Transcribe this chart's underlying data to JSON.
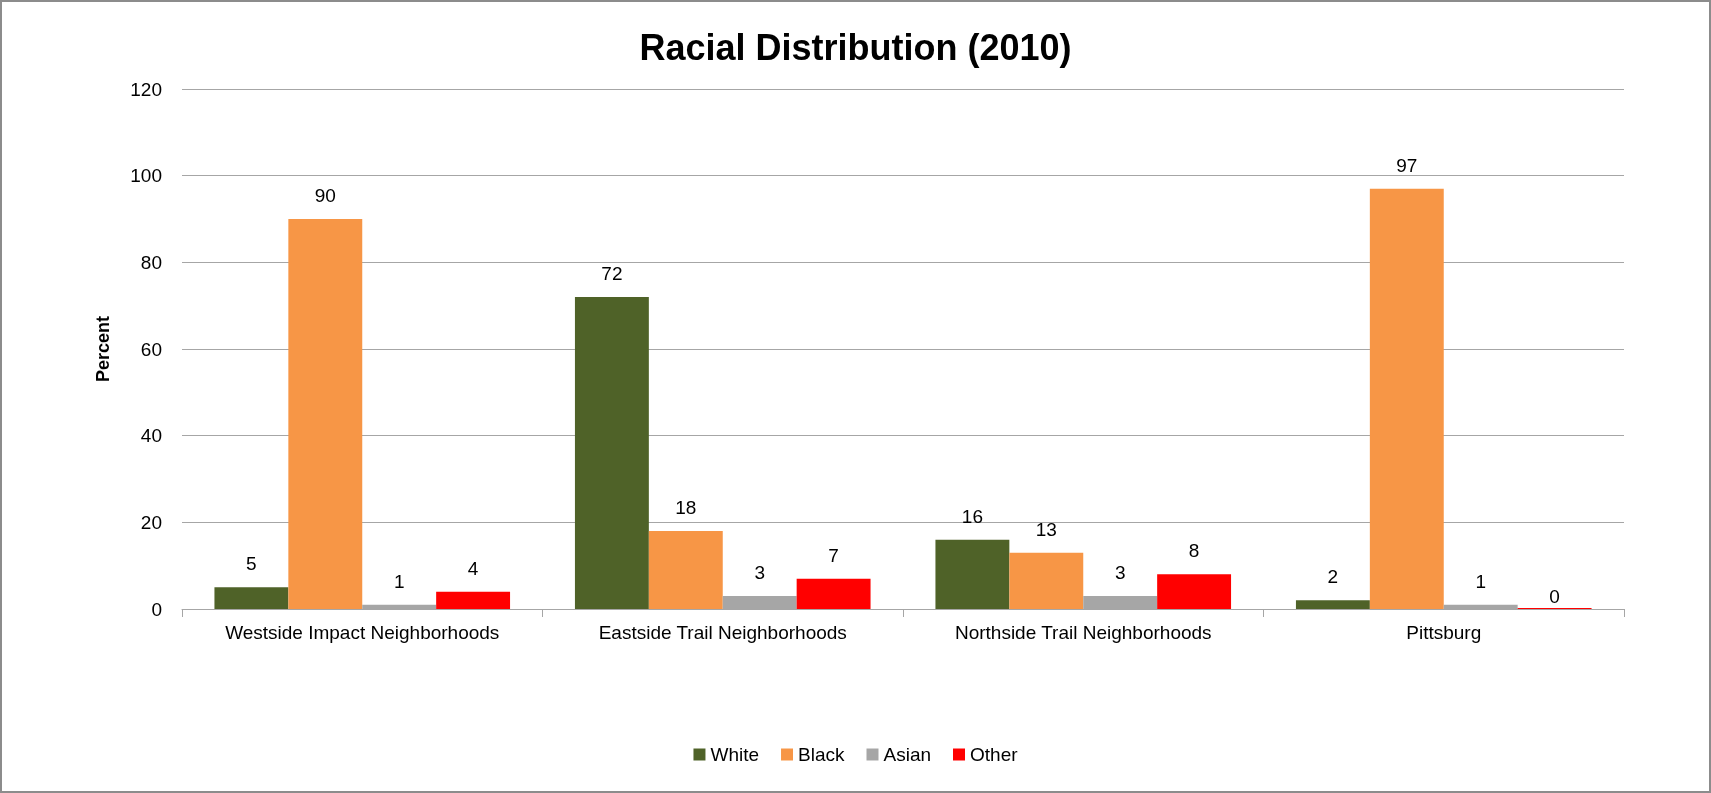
{
  "chart_data": {
    "type": "bar",
    "title": "Racial Distribution (2010)",
    "ylabel": "Percent",
    "categories": [
      "Westside Impact Neighborhoods",
      "Eastside Trail Neighborhoods",
      "Northside Trail Neighborhoods",
      "Pittsburg"
    ],
    "series": [
      {
        "name": "White",
        "color": "#4f6228",
        "values": [
          5,
          72,
          16,
          2
        ]
      },
      {
        "name": "Black",
        "color": "#f79646",
        "values": [
          90,
          18,
          13,
          97
        ]
      },
      {
        "name": "Asian",
        "color": "#a6a6a6",
        "values": [
          1,
          3,
          3,
          1
        ]
      },
      {
        "name": "Other",
        "color": "#ff0000",
        "values": [
          4,
          7,
          8,
          0
        ]
      }
    ],
    "ylim": [
      0,
      120
    ],
    "yticks": [
      0,
      20,
      40,
      60,
      80,
      100,
      120
    ],
    "grid": "y",
    "legend": "bottom",
    "data_labels": true
  }
}
